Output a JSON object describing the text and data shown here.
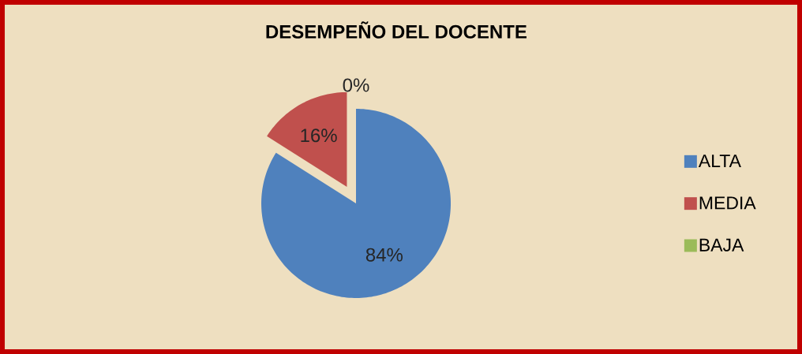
{
  "chart_data": {
    "type": "pie",
    "title": "DESEMPEÑO DEL DOCENTE",
    "categories": [
      "ALTA",
      "MEDIA",
      "BAJA"
    ],
    "values": [
      84,
      16,
      0
    ],
    "colors": [
      "#4f81bd",
      "#c0504d",
      "#9bbb59"
    ],
    "value_labels": [
      "84%",
      "16%",
      "0%"
    ],
    "legend": "right"
  }
}
